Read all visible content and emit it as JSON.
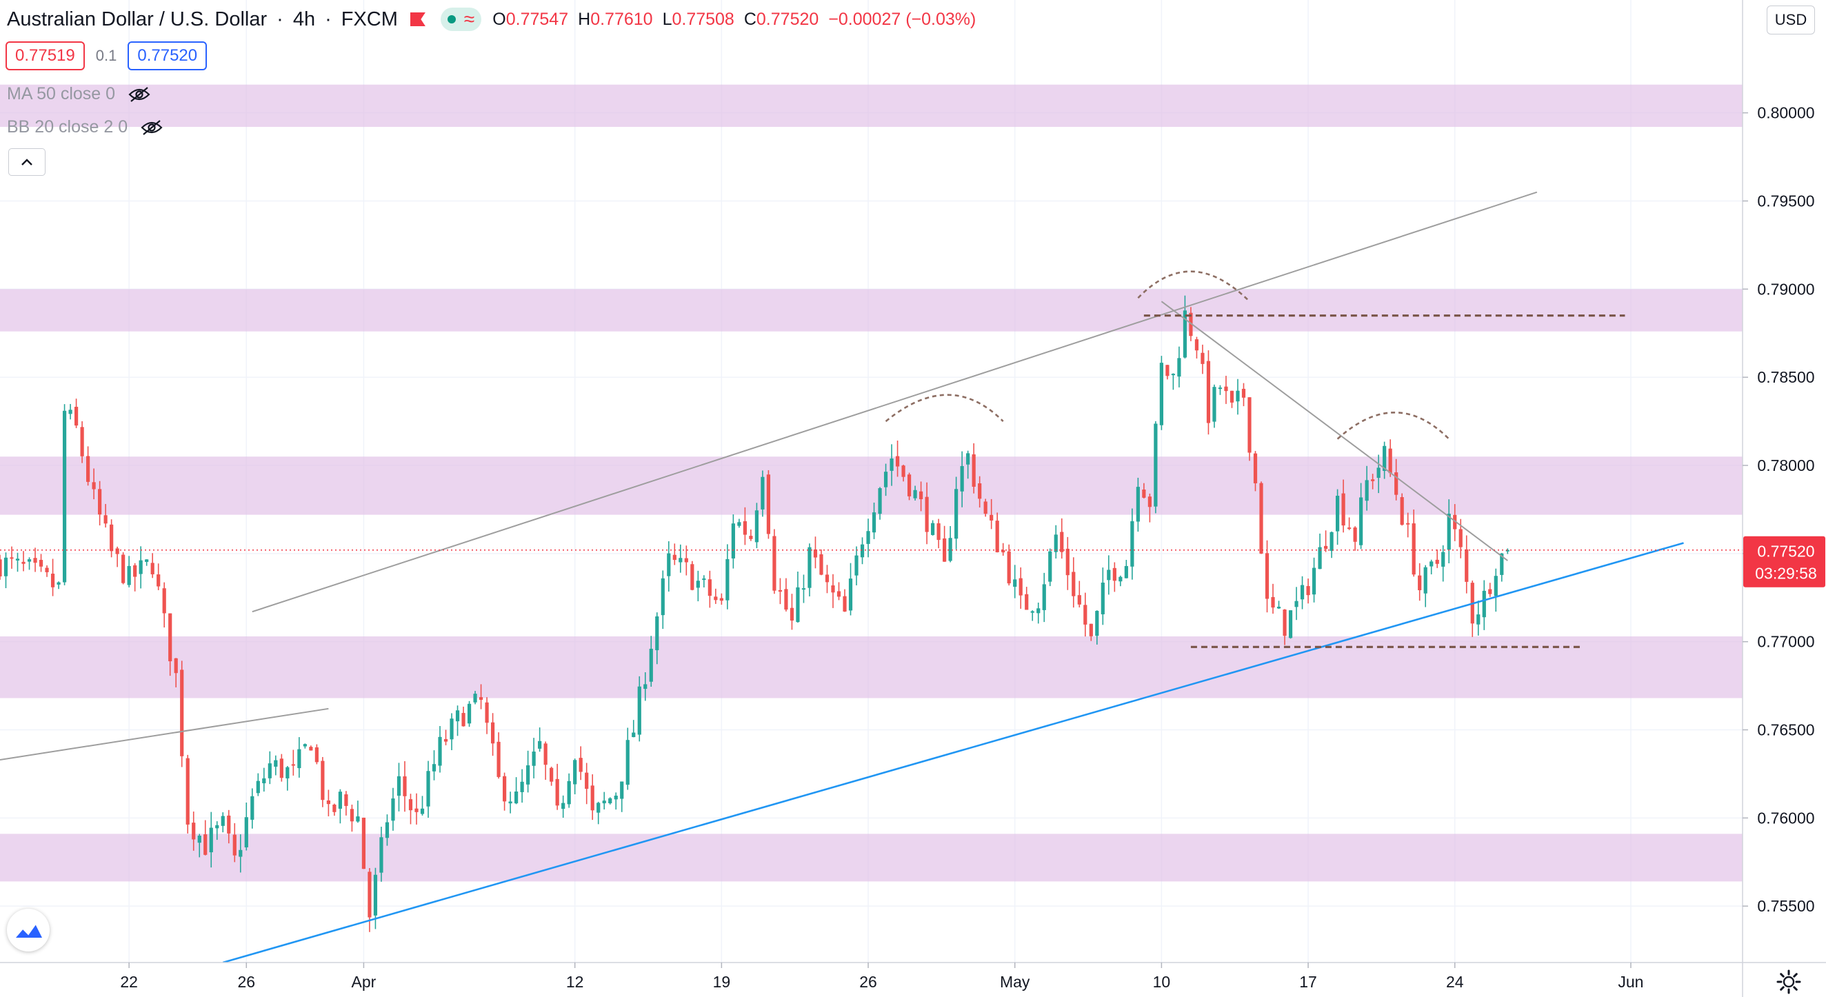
{
  "legend": {
    "symbol": "Australian Dollar / U.S. Dollar",
    "interval": "4h",
    "source": "FXCM",
    "ohlc": [
      {
        "key": "O",
        "value": "0.77547"
      },
      {
        "key": "H",
        "value": "0.77610"
      },
      {
        "key": "L",
        "value": "0.77508"
      },
      {
        "key": "C",
        "value": "0.77520"
      }
    ],
    "change": "−0.00027 (−0.03%)"
  },
  "quote": {
    "sell": "0.77519",
    "spread": "0.1",
    "buy": "0.77520"
  },
  "indicators": [
    {
      "label": "MA 50 close 0"
    },
    {
      "label": "BB 20 close 2 0"
    }
  ],
  "currency_label": "USD",
  "last_price": {
    "price": "0.77520",
    "countdown": "03:29:58"
  },
  "colors": {
    "up": "#26a69a",
    "down": "#ef5350",
    "zone": "#e1bee7",
    "trendline": "#9e9e9e",
    "support_line": "#2196f3",
    "level_line": "#795548",
    "last_price": "#f23645"
  },
  "icons": [
    "flag-icon",
    "market-status-icon",
    "eye-off-icon",
    "chevron-up-icon",
    "tradingview-logo-icon",
    "gear-icon"
  ],
  "chart_data": {
    "type": "candlestick",
    "symbol": "AUDUSD",
    "timeframe": "4h",
    "y_range": [
      0.7518,
      0.8064
    ],
    "y_ticks": [
      "0.75500",
      "0.76000",
      "0.76500",
      "0.77000",
      "0.77500",
      "0.78000",
      "0.78500",
      "0.79000",
      "0.79500",
      "0.80000"
    ],
    "x_ticks": [
      {
        "label": "22",
        "bar": 22
      },
      {
        "label": "26",
        "bar": 42
      },
      {
        "label": "Apr",
        "bar": 62
      },
      {
        "label": "12",
        "bar": 98
      },
      {
        "label": "19",
        "bar": 123
      },
      {
        "label": "26",
        "bar": 148
      },
      {
        "label": "May",
        "bar": 173
      },
      {
        "label": "10",
        "bar": 198
      },
      {
        "label": "17",
        "bar": 223
      },
      {
        "label": "24",
        "bar": 248
      },
      {
        "label": "Jun",
        "bar": 278
      }
    ],
    "bar_count_visible": 310,
    "close_path": [
      [
        0,
        0.7745
      ],
      [
        5,
        0.774
      ],
      [
        10,
        0.773
      ],
      [
        11,
        0.783
      ],
      [
        13,
        0.782
      ],
      [
        16,
        0.778
      ],
      [
        19,
        0.775
      ],
      [
        22,
        0.7735
      ],
      [
        26,
        0.7745
      ],
      [
        28,
        0.771
      ],
      [
        30,
        0.768
      ],
      [
        32,
        0.76
      ],
      [
        35,
        0.7585
      ],
      [
        38,
        0.7595
      ],
      [
        40,
        0.7575
      ],
      [
        43,
        0.761
      ],
      [
        46,
        0.763
      ],
      [
        50,
        0.7625
      ],
      [
        53,
        0.7645
      ],
      [
        56,
        0.76
      ],
      [
        58,
        0.761
      ],
      [
        61,
        0.76
      ],
      [
        63,
        0.7545
      ],
      [
        66,
        0.76
      ],
      [
        68,
        0.762
      ],
      [
        71,
        0.76
      ],
      [
        75,
        0.764
      ],
      [
        79,
        0.766
      ],
      [
        82,
        0.7665
      ],
      [
        85,
        0.762
      ],
      [
        88,
        0.761
      ],
      [
        92,
        0.764
      ],
      [
        95,
        0.76
      ],
      [
        98,
        0.764
      ],
      [
        101,
        0.76
      ],
      [
        105,
        0.7615
      ],
      [
        108,
        0.765
      ],
      [
        111,
        0.77
      ],
      [
        114,
        0.7745
      ],
      [
        117,
        0.774
      ],
      [
        120,
        0.773
      ],
      [
        123,
        0.772
      ],
      [
        125,
        0.777
      ],
      [
        128,
        0.776
      ],
      [
        130,
        0.78
      ],
      [
        132,
        0.7735
      ],
      [
        135,
        0.771
      ],
      [
        138,
        0.775
      ],
      [
        141,
        0.773
      ],
      [
        144,
        0.7715
      ],
      [
        147,
        0.776
      ],
      [
        150,
        0.779
      ],
      [
        152,
        0.7805
      ],
      [
        155,
        0.779
      ],
      [
        158,
        0.777
      ],
      [
        161,
        0.774
      ],
      [
        163,
        0.779
      ],
      [
        165,
        0.7805
      ],
      [
        168,
        0.777
      ],
      [
        171,
        0.775
      ],
      [
        174,
        0.772
      ],
      [
        177,
        0.7725
      ],
      [
        180,
        0.776
      ],
      [
        183,
        0.773
      ],
      [
        186,
        0.77
      ],
      [
        189,
        0.774
      ],
      [
        192,
        0.7745
      ],
      [
        194,
        0.7795
      ],
      [
        196,
        0.778
      ],
      [
        198,
        0.7855
      ],
      [
        200,
        0.785
      ],
      [
        202,
        0.7885
      ],
      [
        204,
        0.787
      ],
      [
        206,
        0.783
      ],
      [
        208,
        0.7845
      ],
      [
        210,
        0.783
      ],
      [
        212,
        0.784
      ],
      [
        214,
        0.779
      ],
      [
        216,
        0.772
      ],
      [
        219,
        0.771
      ],
      [
        222,
        0.7725
      ],
      [
        225,
        0.775
      ],
      [
        228,
        0.778
      ],
      [
        231,
        0.776
      ],
      [
        233,
        0.779
      ],
      [
        236,
        0.7805
      ],
      [
        238,
        0.7785
      ],
      [
        240,
        0.776
      ],
      [
        242,
        0.773
      ],
      [
        245,
        0.7745
      ],
      [
        247,
        0.777
      ],
      [
        249,
        0.775
      ],
      [
        251,
        0.7715
      ],
      [
        253,
        0.7725
      ],
      [
        255,
        0.7745
      ],
      [
        257,
        0.7752
      ]
    ],
    "zones": [
      [
        0.7992,
        0.8016
      ],
      [
        0.7876,
        0.79
      ],
      [
        0.7772,
        0.7805
      ],
      [
        0.7668,
        0.7703
      ],
      [
        0.7564,
        0.7591
      ]
    ],
    "trendlines": [
      {
        "from": [
          43,
          0.7717
        ],
        "to": [
          262,
          0.7955
        ]
      },
      {
        "from": [
          0,
          0.7633
        ],
        "to": [
          56,
          0.7662
        ]
      },
      {
        "from": [
          38,
          0.7518
        ],
        "to": [
          287,
          0.7756
        ]
      },
      {
        "from": [
          198,
          0.7893
        ],
        "to": [
          257,
          0.7746
        ]
      }
    ],
    "levels": [
      {
        "price": 0.7885,
        "from": 195,
        "to": 277
      },
      {
        "price": 0.7697,
        "from": 203,
        "to": 270
      }
    ],
    "arcs": [
      {
        "from": [
          151,
          0.7825
        ],
        "peak": [
          162,
          0.784
        ],
        "to": [
          171,
          0.7825
        ]
      },
      {
        "from": [
          194,
          0.7895
        ],
        "peak": [
          203,
          0.791
        ],
        "to": [
          213,
          0.7893
        ]
      },
      {
        "from": [
          228,
          0.7815
        ],
        "peak": [
          238,
          0.783
        ],
        "to": [
          247,
          0.7815
        ]
      }
    ],
    "last_price": 0.7752,
    "grid": true
  }
}
